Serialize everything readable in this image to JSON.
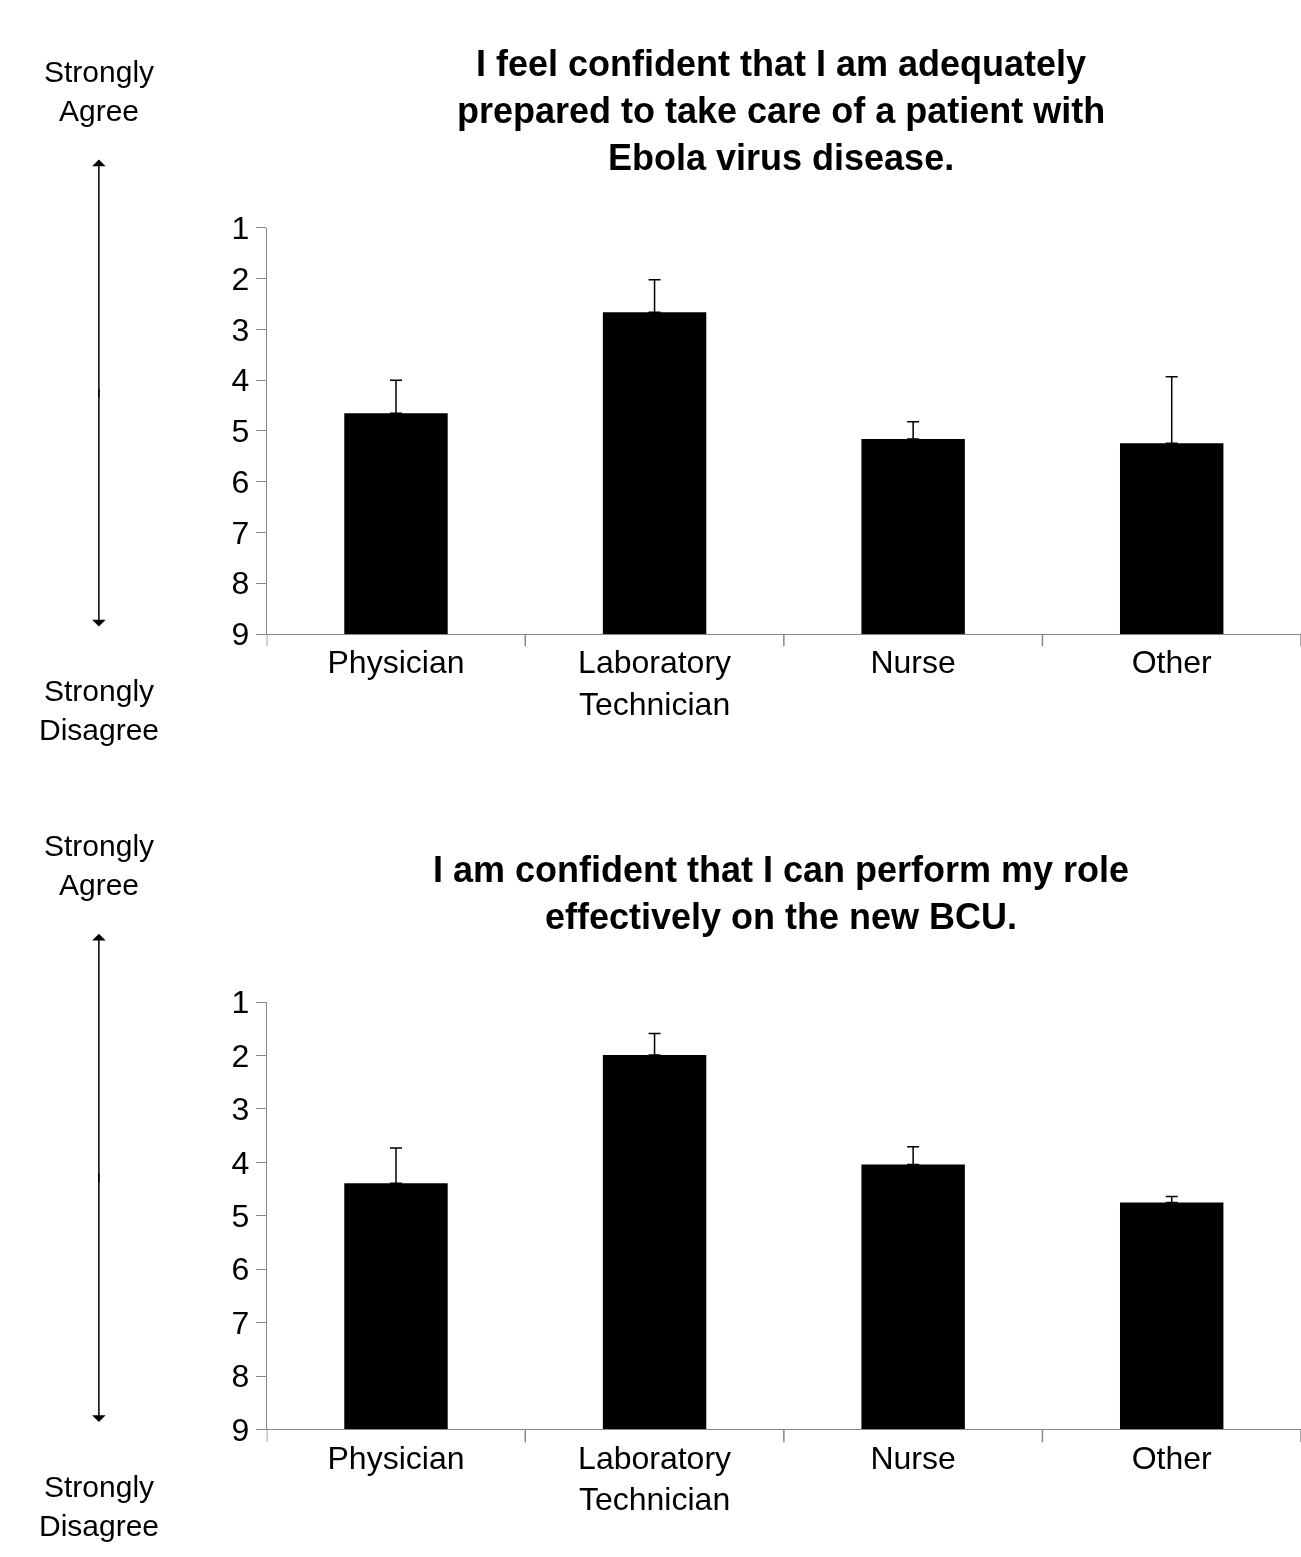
{
  "chart_data": [
    {
      "type": "bar",
      "title": "I feel confident that I am adequately prepared to take care of a patient with Ebola virus disease.",
      "categories": [
        "Physician",
        "Laboratory\nTechnician",
        "Nurse",
        "Other"
      ],
      "base": [
        9,
        9,
        9,
        9
      ],
      "values": [
        -4.35,
        -6.34,
        -3.84,
        -3.76
      ],
      "errors": [
        [
          4.0,
          4.65
        ],
        [
          2.02,
          2.66
        ],
        [
          4.82,
          5.16
        ],
        [
          3.93,
          5.24
        ]
      ],
      "color": "#000000",
      "ylim": [
        9,
        1
      ],
      "yticks": [
        1,
        2,
        3,
        4,
        5,
        6,
        7,
        8,
        9
      ],
      "annotations": [
        "Strongly Agree",
        "Strongly Disagree"
      ]
    },
    {
      "type": "bar",
      "title": "I am confident that I can perform my role effectively on the new BCU.",
      "categories": [
        "Physician",
        "Laboratory\nTechnician",
        "Nurse",
        "Other"
      ],
      "base": [
        9,
        9,
        9,
        9
      ],
      "values": [
        -4.61,
        -7.01,
        -4.96,
        -4.25
      ],
      "errors": [
        [
          3.73,
          4.39
        ],
        [
          1.59,
          1.99
        ],
        [
          3.71,
          4.04
        ],
        [
          4.64,
          4.75
        ]
      ],
      "color": "#000000",
      "ylim": [
        9,
        1
      ],
      "yticks": [
        1,
        2,
        3,
        4,
        5,
        6,
        7,
        8,
        9
      ],
      "annotations": [
        "Strongly Agree",
        "Strongly Disagree"
      ]
    }
  ]
}
